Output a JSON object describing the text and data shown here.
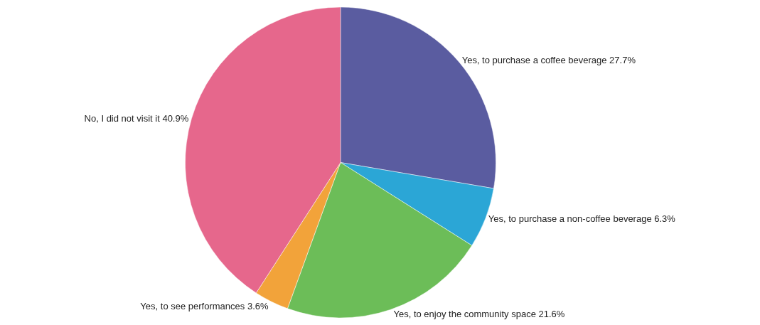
{
  "chart_data": {
    "type": "pie",
    "categories": [
      "Yes, to purchase a coffee beverage",
      "Yes, to purchase a non-coffee beverage",
      "Yes, to enjoy the community space",
      "Yes, to see performances",
      "No, I did not visit it"
    ],
    "values": [
      27.7,
      6.3,
      21.6,
      3.6,
      40.9
    ],
    "value_labels": [
      "27.7%",
      "6.3%",
      "21.6%",
      "3.6%",
      "40.9%"
    ],
    "colors": [
      "#5a5ca0",
      "#2ba6d6",
      "#6cbd58",
      "#f2a33a",
      "#e6678c"
    ],
    "legend": false
  }
}
